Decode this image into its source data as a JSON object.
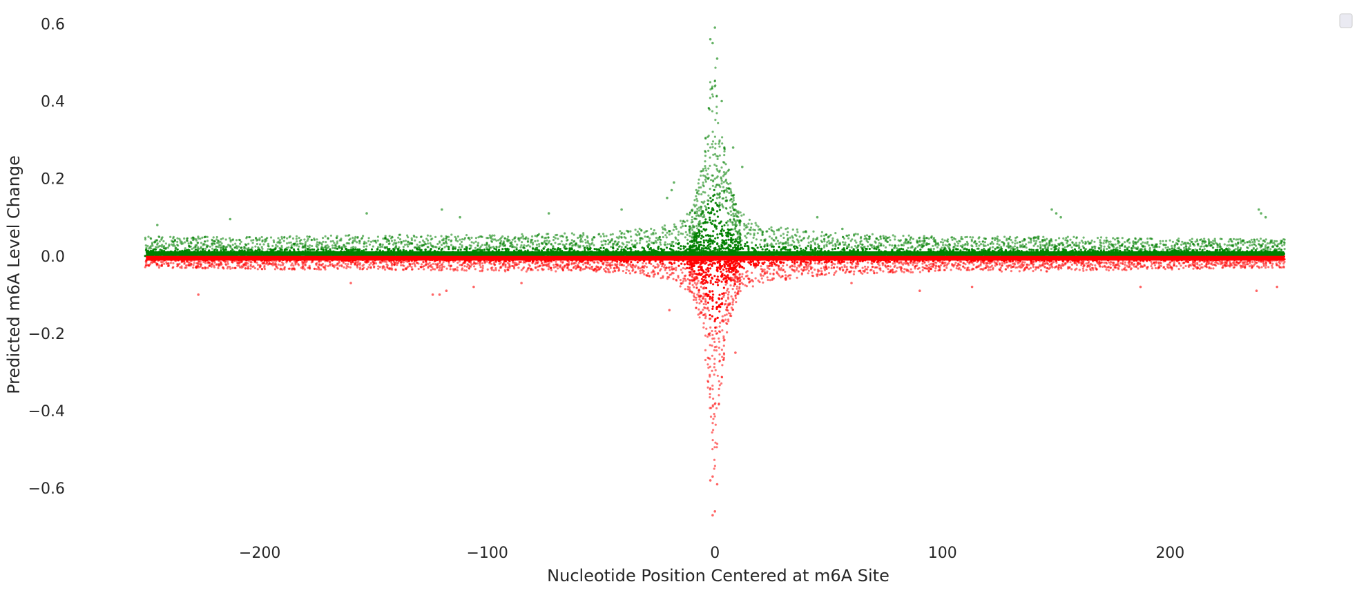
{
  "chart_data": {
    "type": "scatter",
    "title": "",
    "xlabel": "Nucleotide Position Centered at m6A Site",
    "ylabel": "Predicted m6A Level Change",
    "xlim": [
      -258,
      270
    ],
    "ylim": [
      -0.73,
      0.64
    ],
    "x_range": [
      -250,
      250
    ],
    "xticks": [
      -200,
      -100,
      0,
      100,
      200
    ],
    "xtick_labels": [
      "−200",
      "−100",
      "0",
      "100",
      "200"
    ],
    "yticks": [
      0.6,
      0.4,
      0.2,
      0.0,
      -0.2,
      -0.4,
      -0.6
    ],
    "ytick_labels": [
      "0.6",
      "0.4",
      "0.2",
      "0.0",
      "−0.2",
      "−0.4",
      "−0.6"
    ],
    "grid": false,
    "legend": {
      "placement": "top-right",
      "entries": []
    },
    "colors": {
      "positive": "#008000",
      "negative": "#ff0000",
      "text": "#262626"
    },
    "series": [
      {
        "color": "#008000",
        "sign": "positive",
        "band_max_by_position": [
          [
            -250,
            0.05
          ],
          [
            -200,
            0.05
          ],
          [
            -150,
            0.055
          ],
          [
            -100,
            0.055
          ],
          [
            -50,
            0.06
          ],
          [
            -20,
            0.08
          ],
          [
            -10,
            0.12
          ],
          [
            -5,
            0.25
          ],
          [
            -2,
            0.45
          ],
          [
            0,
            0.5
          ],
          [
            2,
            0.35
          ],
          [
            5,
            0.25
          ],
          [
            10,
            0.12
          ],
          [
            20,
            0.08
          ],
          [
            50,
            0.06
          ],
          [
            100,
            0.05
          ],
          [
            150,
            0.05
          ],
          [
            200,
            0.045
          ],
          [
            250,
            0.045
          ]
        ],
        "outliers": [
          [
            0,
            0.59
          ],
          [
            -2,
            0.56
          ],
          [
            -1,
            0.55
          ],
          [
            1,
            0.51
          ],
          [
            3,
            0.4
          ],
          [
            -18,
            0.19
          ],
          [
            -19,
            0.17
          ],
          [
            -21,
            0.15
          ],
          [
            8,
            0.28
          ],
          [
            12,
            0.23
          ],
          [
            -245,
            0.08
          ],
          [
            -213,
            0.095
          ],
          [
            -153,
            0.11
          ],
          [
            -120,
            0.12
          ],
          [
            -112,
            0.1
          ],
          [
            -73,
            0.11
          ],
          [
            -41,
            0.12
          ],
          [
            45,
            0.1
          ],
          [
            56,
            0.07
          ],
          [
            148,
            0.12
          ],
          [
            150,
            0.11
          ],
          [
            152,
            0.1
          ],
          [
            239,
            0.12
          ],
          [
            240,
            0.11
          ],
          [
            242,
            0.1
          ]
        ]
      },
      {
        "color": "#ff0000",
        "sign": "negative",
        "band_min_by_position": [
          [
            -250,
            -0.03
          ],
          [
            -200,
            -0.035
          ],
          [
            -150,
            -0.035
          ],
          [
            -100,
            -0.04
          ],
          [
            -50,
            -0.04
          ],
          [
            -20,
            -0.06
          ],
          [
            -10,
            -0.1
          ],
          [
            -5,
            -0.2
          ],
          [
            -2,
            -0.45
          ],
          [
            0,
            -0.55
          ],
          [
            2,
            -0.45
          ],
          [
            5,
            -0.2
          ],
          [
            10,
            -0.1
          ],
          [
            20,
            -0.07
          ],
          [
            50,
            -0.05
          ],
          [
            100,
            -0.04
          ],
          [
            150,
            -0.04
          ],
          [
            200,
            -0.035
          ],
          [
            250,
            -0.03
          ]
        ],
        "outliers": [
          [
            -1,
            -0.67
          ],
          [
            0,
            -0.66
          ],
          [
            -2,
            -0.58
          ],
          [
            -1,
            -0.57
          ],
          [
            1,
            -0.59
          ],
          [
            -20,
            -0.14
          ],
          [
            9,
            -0.25
          ],
          [
            -227,
            -0.1
          ],
          [
            -121,
            -0.1
          ],
          [
            -124,
            -0.1
          ],
          [
            -118,
            -0.09
          ],
          [
            -106,
            -0.08
          ],
          [
            90,
            -0.09
          ],
          [
            113,
            -0.08
          ],
          [
            187,
            -0.08
          ],
          [
            238,
            -0.09
          ],
          [
            247,
            -0.08
          ],
          [
            -160,
            -0.07
          ],
          [
            -85,
            -0.07
          ],
          [
            60,
            -0.07
          ]
        ]
      }
    ]
  }
}
